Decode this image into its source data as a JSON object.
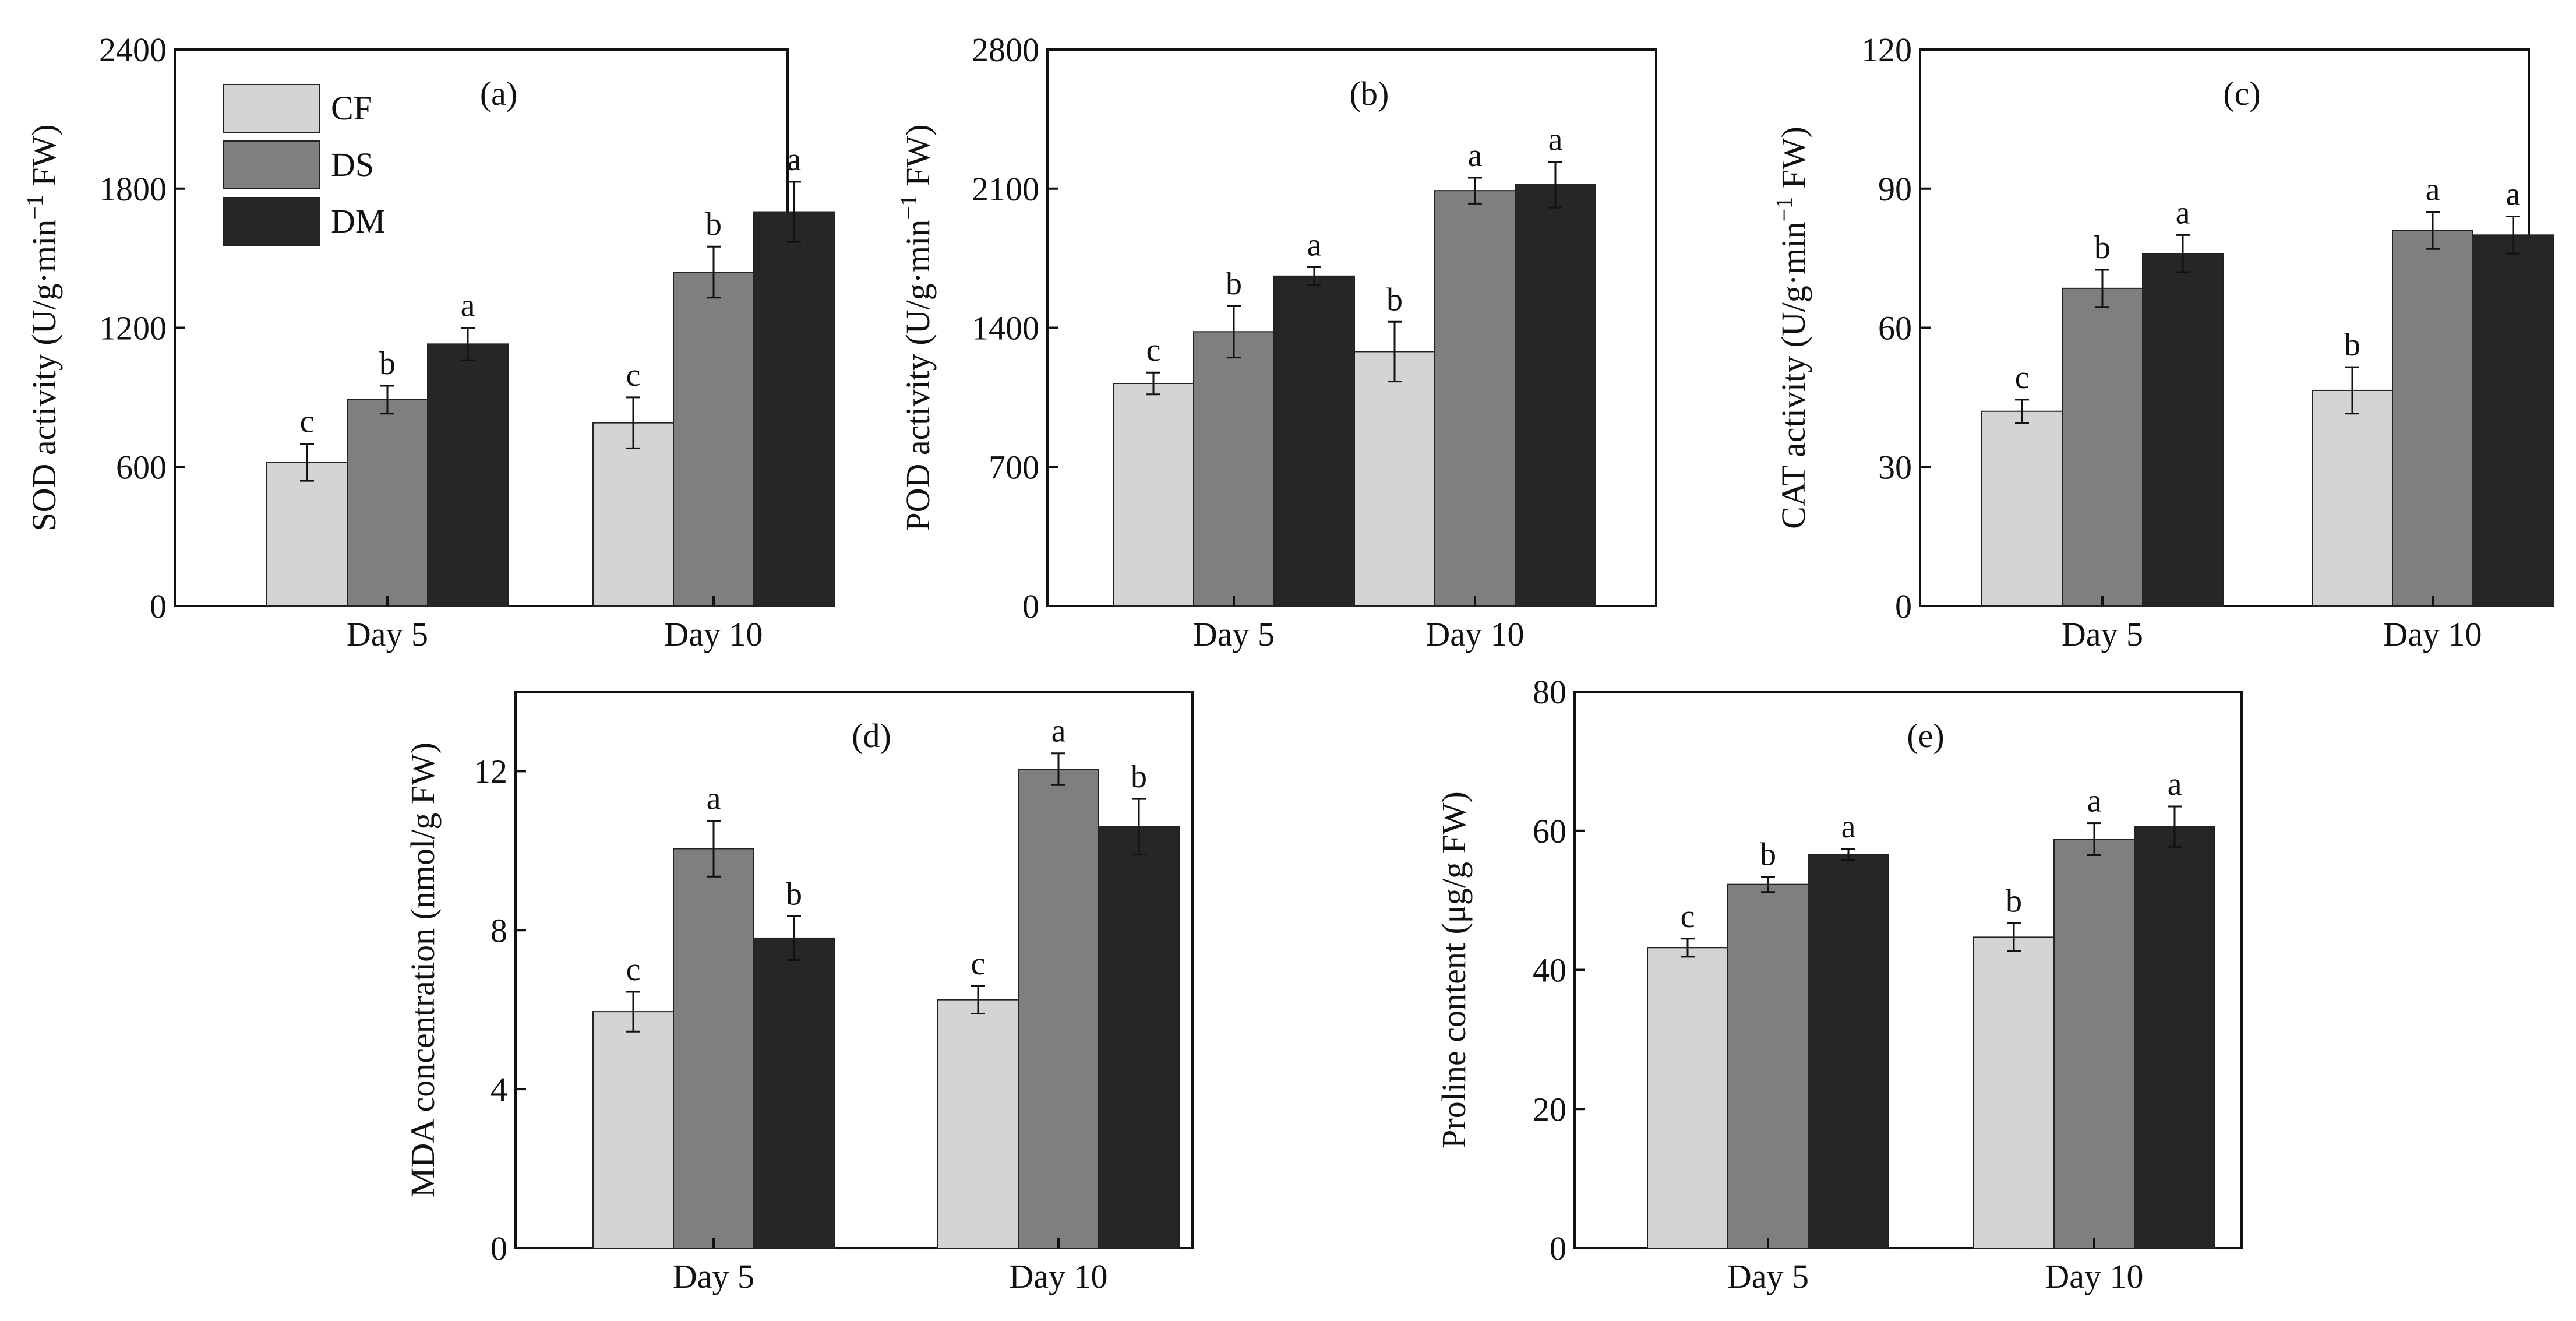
{
  "legend": {
    "placement": "top-left of panel (a)",
    "entries": [
      {
        "name": "CF",
        "color": "#d4d4d4"
      },
      {
        "name": "DS",
        "color": "#7f7f7f"
      },
      {
        "name": "DM",
        "color": "#262626"
      }
    ]
  },
  "chart_data": [
    {
      "panel": "(a)",
      "type": "bar",
      "ylabel": "SOD activity (U/g·min⁻¹ FW)",
      "ylabel_main": "SOD activity (U/g·min",
      "ylabel_sup": "−1",
      "ylabel_tail": " FW)",
      "ylim": [
        0,
        2400
      ],
      "yticks": [
        "0",
        "600",
        "1200",
        "1800",
        "2400"
      ],
      "categories": [
        "Day 5",
        "Day 10"
      ],
      "series": [
        {
          "name": "CF",
          "values": [
            620,
            790
          ],
          "errors": [
            80,
            110
          ],
          "letters": [
            "c",
            "c"
          ]
        },
        {
          "name": "DS",
          "values": [
            890,
            1440
          ],
          "errors": [
            60,
            110
          ],
          "letters": [
            "b",
            "b"
          ]
        },
        {
          "name": "DM",
          "values": [
            1130,
            1700
          ],
          "errors": [
            70,
            130
          ],
          "letters": [
            "a",
            "a"
          ]
        }
      ]
    },
    {
      "panel": "(b)",
      "type": "bar",
      "ylabel": "POD activity (U/g·min⁻¹ FW)",
      "ylabel_main": "POD activity (U/g·min",
      "ylabel_sup": "−1",
      "ylabel_tail": " FW)",
      "ylim": [
        0,
        2800
      ],
      "yticks": [
        "0",
        "700",
        "1400",
        "2100",
        "2800"
      ],
      "categories": [
        "Day 5",
        "Day 10"
      ],
      "series": [
        {
          "name": "CF",
          "values": [
            1120,
            1280
          ],
          "errors": [
            55,
            150
          ],
          "letters": [
            "c",
            "b"
          ]
        },
        {
          "name": "DS",
          "values": [
            1380,
            2090
          ],
          "errors": [
            130,
            65
          ],
          "letters": [
            "b",
            "a"
          ]
        },
        {
          "name": "DM",
          "values": [
            1660,
            2120
          ],
          "errors": [
            45,
            115
          ],
          "letters": [
            "a",
            "a"
          ]
        }
      ]
    },
    {
      "panel": "(c)",
      "type": "bar",
      "ylabel": "CAT activity (U/g·min⁻¹ FW)",
      "ylabel_main": "CAT activity (U/g·min",
      "ylabel_sup": "−1",
      "ylabel_tail": " FW)",
      "ylim": [
        0,
        120
      ],
      "yticks": [
        "0",
        "30",
        "60",
        "90",
        "120"
      ],
      "categories": [
        "Day 5",
        "Day 10"
      ],
      "series": [
        {
          "name": "CF",
          "values": [
            42,
            46.5
          ],
          "errors": [
            2.5,
            5
          ],
          "letters": [
            "c",
            "b"
          ]
        },
        {
          "name": "DS",
          "values": [
            68.5,
            81
          ],
          "errors": [
            4,
            4
          ],
          "letters": [
            "b",
            "a"
          ]
        },
        {
          "name": "DM",
          "values": [
            76,
            80
          ],
          "errors": [
            4,
            4
          ],
          "letters": [
            "a",
            "a"
          ]
        }
      ]
    },
    {
      "panel": "(d)",
      "type": "bar",
      "ylabel": "MDA concentration (nmol/g FW)",
      "ylabel_main": "MDA concentration (nmol/g FW)",
      "ylabel_sup": "",
      "ylabel_tail": "",
      "ylim": [
        0,
        14
      ],
      "yticks": [
        "0",
        "4",
        "8",
        "12"
      ],
      "categories": [
        "Day 5",
        "Day 10"
      ],
      "series": [
        {
          "name": "CF",
          "values": [
            5.95,
            6.25
          ],
          "errors": [
            0.5,
            0.35
          ],
          "letters": [
            "c",
            "c"
          ]
        },
        {
          "name": "DS",
          "values": [
            10.05,
            12.05
          ],
          "errors": [
            0.7,
            0.4
          ],
          "letters": [
            "a",
            "a"
          ]
        },
        {
          "name": "DM",
          "values": [
            7.8,
            10.6
          ],
          "errors": [
            0.55,
            0.7
          ],
          "letters": [
            "b",
            "b"
          ]
        }
      ]
    },
    {
      "panel": "(e)",
      "type": "bar",
      "ylabel": "Proline content (μg/g FW)",
      "ylabel_main": "Proline content (μg/g FW)",
      "ylabel_sup": "",
      "ylabel_tail": "",
      "ylim": [
        0,
        80
      ],
      "yticks": [
        "0",
        "20",
        "40",
        "60",
        "80"
      ],
      "categories": [
        "Day 5",
        "Day 10"
      ],
      "series": [
        {
          "name": "CF",
          "values": [
            43.2,
            44.7
          ],
          "errors": [
            1.3,
            2
          ],
          "letters": [
            "c",
            "b"
          ]
        },
        {
          "name": "DS",
          "values": [
            52.3,
            58.8
          ],
          "errors": [
            1.1,
            2.3
          ],
          "letters": [
            "b",
            "a"
          ]
        },
        {
          "name": "DM",
          "values": [
            56.6,
            60.6
          ],
          "errors": [
            0.8,
            2.9
          ],
          "letters": [
            "a",
            "a"
          ]
        }
      ]
    }
  ]
}
